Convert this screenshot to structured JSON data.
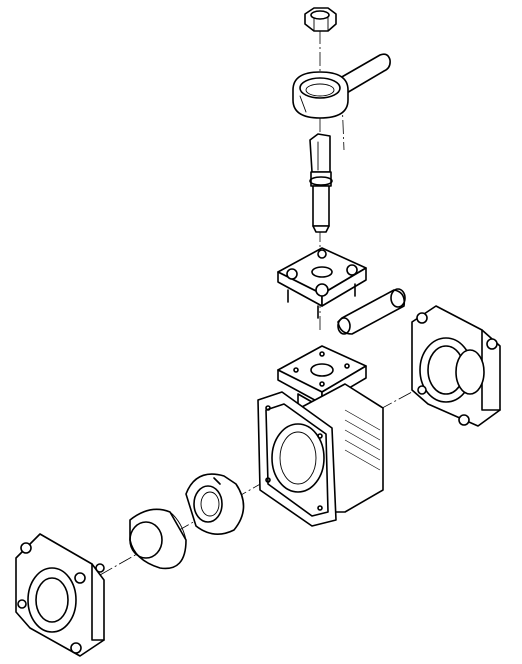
{
  "diagram": {
    "type": "exploded-view",
    "subject": "ball-valve-assembly",
    "parts": [
      {
        "id": "nut"
      },
      {
        "id": "handle-lever"
      },
      {
        "id": "stem"
      },
      {
        "id": "stem-packing-plate"
      },
      {
        "id": "key-insert"
      },
      {
        "id": "mounting-flange"
      },
      {
        "id": "valve-body"
      },
      {
        "id": "end-cap-right"
      },
      {
        "id": "ball-seat"
      },
      {
        "id": "ball"
      },
      {
        "id": "end-cap-left"
      }
    ]
  }
}
